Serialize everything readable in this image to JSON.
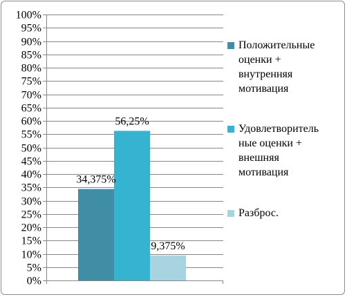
{
  "chart_data": {
    "type": "bar",
    "title": "",
    "xlabel": "",
    "ylabel": "",
    "ylim": [
      0,
      100
    ],
    "ytick_step": 5,
    "ytick_format": "percent",
    "grid": true,
    "legend_placement": "right",
    "series": [
      {
        "name": "Положительные оценки + внутренняя мотивация",
        "value": 34.375,
        "label": "34,375%",
        "color": "#3f8ea5"
      },
      {
        "name": "Удовлетворительные оценки + внешняя мотивация",
        "value": 56.25,
        "label": "56,25%",
        "color": "#36b3d0"
      },
      {
        "name": "Разброс.",
        "value": 9.375,
        "label": "9,375%",
        "color": "#a8d3e0"
      }
    ]
  },
  "legend": {
    "items": [
      {
        "lines": [
          "Положительные",
          "оценки +",
          "внутренняя",
          "мотивация"
        ]
      },
      {
        "lines": [
          "Удовлетворитель",
          "ные оценки +",
          "внешняя",
          "мотивация"
        ]
      },
      {
        "lines": [
          "Разброс."
        ]
      }
    ]
  }
}
